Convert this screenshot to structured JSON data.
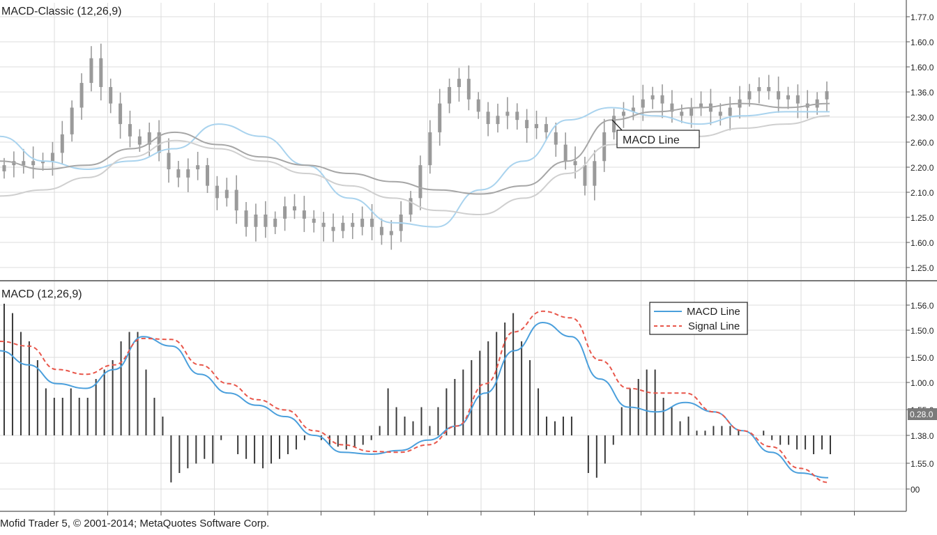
{
  "footer": {
    "text": "Mofid Trader 5, © 2001-2014; MetaQuotes Software Corp."
  },
  "colors": {
    "grid": "#dcdcdc",
    "candle": "#9a9a9a",
    "ma_fast": "#a9d3ee",
    "ma_mid": "#a6a6a6",
    "ma_slow": "#cfcfcf",
    "histogram": "#3a3a3a",
    "macd_line": "#4a9fdc",
    "signal_line": "#e8564a",
    "separator": "#777777"
  },
  "chart_data": [
    {
      "type": "candlestick",
      "title": "MACD-Classic (12,26,9)",
      "y_tick_labels": [
        "1.77.0",
        "1.60.0",
        "1.60.0",
        "1.36.0",
        "2.30.0",
        "2.60.0",
        "2.20.0",
        "2.10.0",
        "1.25.0",
        "1.60.0",
        "1.25.0"
      ],
      "annotation": "MACD Line",
      "grid": true,
      "closes": [
        0.7,
        0.72,
        0.7,
        0.72,
        0.72,
        0.76,
        0.85,
        0.98,
        1.1,
        1.22,
        1.08,
        1.0,
        0.9,
        0.84,
        0.8,
        0.86,
        0.76,
        0.68,
        0.64,
        0.68,
        0.7,
        0.6,
        0.54,
        0.58,
        0.48,
        0.4,
        0.46,
        0.4,
        0.44,
        0.5,
        0.48,
        0.44,
        0.42,
        0.4,
        0.38,
        0.42,
        0.4,
        0.44,
        0.4,
        0.36,
        0.38,
        0.46,
        0.54,
        0.7,
        0.86,
        1.0,
        1.08,
        1.12,
        1.02,
        0.96,
        0.9,
        0.94,
        0.96,
        0.92,
        0.88,
        0.9,
        0.86,
        0.8,
        0.72,
        0.7,
        0.6,
        0.72,
        0.86,
        0.94,
        0.96,
        0.98,
        1.02,
        1.04,
        1.0,
        0.96,
        0.94,
        0.98,
        1.0,
        0.96,
        0.94,
        0.98,
        1.02,
        1.06,
        1.08,
        1.06,
        1.02,
        1.04,
        1.0,
        0.98,
        1.02,
        1.06
      ],
      "series": [
        {
          "name": "",
          "values": [
            0.84,
            0.72,
            0.68,
            0.72,
            0.78,
            0.9,
            0.84,
            0.7,
            0.54,
            0.42,
            0.4,
            0.58,
            0.72,
            0.92,
            0.98,
            0.94,
            0.9,
            0.94,
            0.96,
            0.96
          ]
        },
        {
          "name": "",
          "values": [
            0.72,
            0.68,
            0.7,
            0.78,
            0.86,
            0.8,
            0.74,
            0.7,
            0.66,
            0.62,
            0.58,
            0.56,
            0.6,
            0.72,
            0.92,
            0.96,
            0.98,
            1.0,
            0.98,
            1.0
          ]
        },
        {
          "name": "",
          "values": [
            0.55,
            0.58,
            0.64,
            0.74,
            0.82,
            0.78,
            0.72,
            0.66,
            0.6,
            0.54,
            0.48,
            0.46,
            0.54,
            0.66,
            0.8,
            0.86,
            0.84,
            0.88,
            0.9,
            0.94
          ]
        }
      ]
    },
    {
      "type": "bar",
      "title": "MACD (12,26,9)",
      "y_tick_labels": [
        "1.56.0",
        "1.50.0",
        "1.50.0",
        "1.00.0",
        "1.55.0",
        "1.38.0",
        "1.55.0",
        "00"
      ],
      "value_badge": "0.28.0",
      "legend_position": "top-right",
      "grid": true,
      "ylim": [
        -0.6,
        1.6
      ],
      "histogram": [
        1.4,
        1.3,
        1.1,
        1.0,
        0.8,
        0.5,
        0.4,
        0.4,
        0.5,
        0.4,
        0.4,
        0.6,
        0.7,
        0.8,
        1.0,
        1.1,
        1.1,
        0.7,
        0.4,
        0.2,
        -0.5,
        -0.4,
        -0.35,
        -0.3,
        -0.25,
        -0.3,
        -0.05,
        0.0,
        -0.2,
        -0.25,
        -0.3,
        -0.35,
        -0.3,
        -0.25,
        -0.2,
        -0.15,
        -0.05,
        0.0,
        -0.05,
        -0.1,
        -0.12,
        -0.15,
        -0.12,
        -0.1,
        -0.05,
        0.1,
        0.5,
        0.3,
        0.2,
        0.15,
        0.3,
        0.1,
        0.3,
        0.5,
        0.6,
        0.7,
        0.8,
        0.9,
        1.0,
        1.1,
        1.2,
        1.3,
        1.0,
        0.8,
        0.5,
        0.2,
        0.15,
        0.2,
        0.2,
        0.0,
        -0.4,
        -0.45,
        -0.3,
        -0.1,
        0.3,
        0.5,
        0.6,
        0.7,
        0.7,
        0.4,
        0.3,
        0.15,
        0.2,
        0.05,
        0.05,
        0.1,
        0.1,
        0.1,
        0.05,
        0.0,
        0.0,
        0.05,
        -0.05,
        -0.1,
        -0.1,
        -0.15,
        -0.15,
        -0.2,
        -0.15,
        -0.2
      ],
      "series": [
        {
          "name": "MACD Line",
          "values": [
            0.9,
            0.75,
            0.55,
            0.5,
            0.7,
            1.05,
            0.95,
            0.65,
            0.45,
            0.32,
            0.2,
            0.0,
            -0.18,
            -0.2,
            -0.16,
            -0.05,
            0.1,
            0.45,
            0.9,
            1.2,
            1.05,
            0.6,
            0.3,
            0.25,
            0.35,
            0.25,
            0.05,
            -0.18,
            -0.4,
            -0.45
          ]
        },
        {
          "name": "Signal Line",
          "values": [
            1.0,
            0.95,
            0.7,
            0.65,
            0.75,
            1.03,
            1.02,
            0.75,
            0.55,
            0.38,
            0.27,
            0.05,
            -0.1,
            -0.17,
            -0.18,
            -0.1,
            0.1,
            0.55,
            1.1,
            1.32,
            1.25,
            0.8,
            0.5,
            0.45,
            0.45,
            0.25,
            0.05,
            -0.12,
            -0.35,
            -0.5
          ]
        }
      ]
    }
  ]
}
